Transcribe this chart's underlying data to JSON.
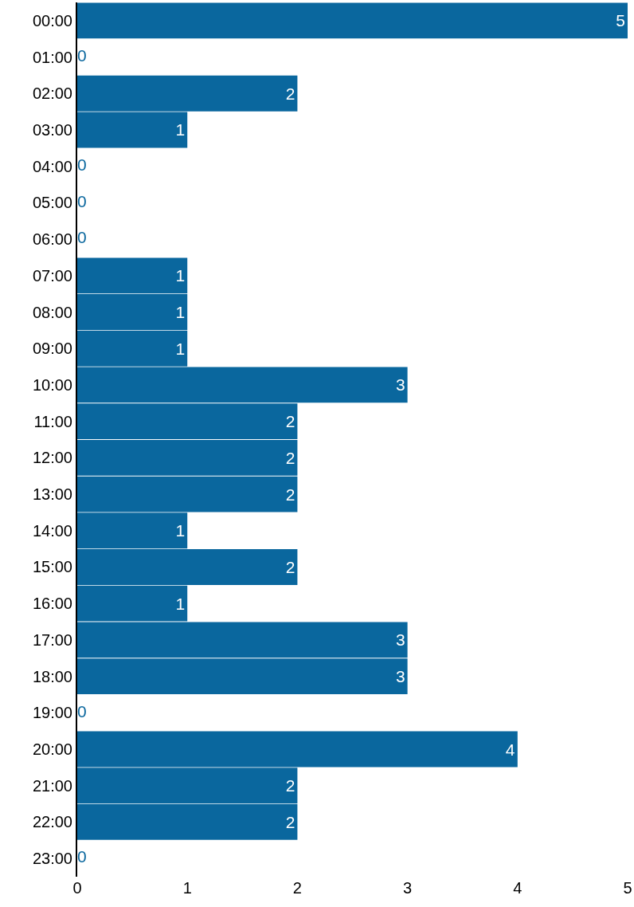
{
  "chart_data": {
    "type": "bar",
    "orientation": "horizontal",
    "categories": [
      "00:00",
      "01:00",
      "02:00",
      "03:00",
      "04:00",
      "05:00",
      "06:00",
      "07:00",
      "08:00",
      "09:00",
      "10:00",
      "11:00",
      "12:00",
      "13:00",
      "14:00",
      "15:00",
      "16:00",
      "17:00",
      "18:00",
      "19:00",
      "20:00",
      "21:00",
      "22:00",
      "23:00"
    ],
    "values": [
      5,
      0,
      2,
      1,
      0,
      0,
      0,
      1,
      1,
      1,
      3,
      2,
      2,
      2,
      1,
      2,
      1,
      3,
      3,
      0,
      4,
      2,
      2,
      0
    ],
    "color": "#0a679e",
    "xlim": [
      0,
      5
    ],
    "xticks": [
      0,
      1,
      2,
      3,
      4,
      5
    ],
    "grid": false,
    "data_labels": true
  }
}
